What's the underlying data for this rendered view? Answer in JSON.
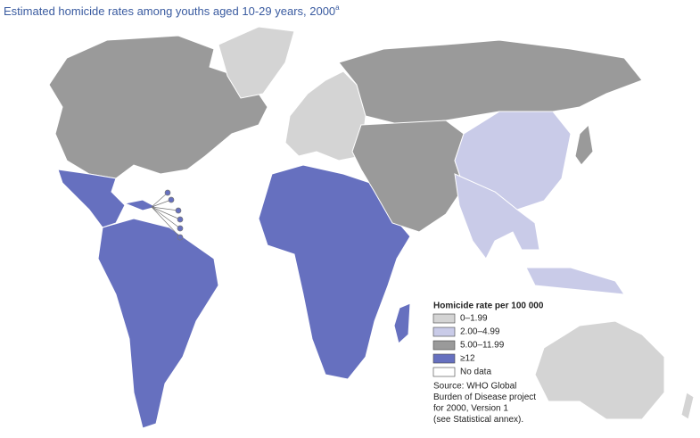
{
  "title": "Estimated homicide rates among youths aged 10-29 years, 2000",
  "title_note": "a",
  "legend": {
    "title": "Homicide rate per 100 000",
    "items": [
      {
        "label": "0–1.99",
        "color": "#d4d4d4"
      },
      {
        "label": "2.00–4.99",
        "color": "#c9cbe8"
      },
      {
        "label": "5.00–11.99",
        "color": "#9a9a9a"
      },
      {
        "label": "≥12",
        "color": "#6670bf"
      },
      {
        "label": "No data",
        "color": "#ffffff"
      }
    ]
  },
  "source": [
    "Source: WHO Global",
    "Burden of Disease project",
    "for 2000, Version 1",
    "(see Statistical annex)."
  ]
}
